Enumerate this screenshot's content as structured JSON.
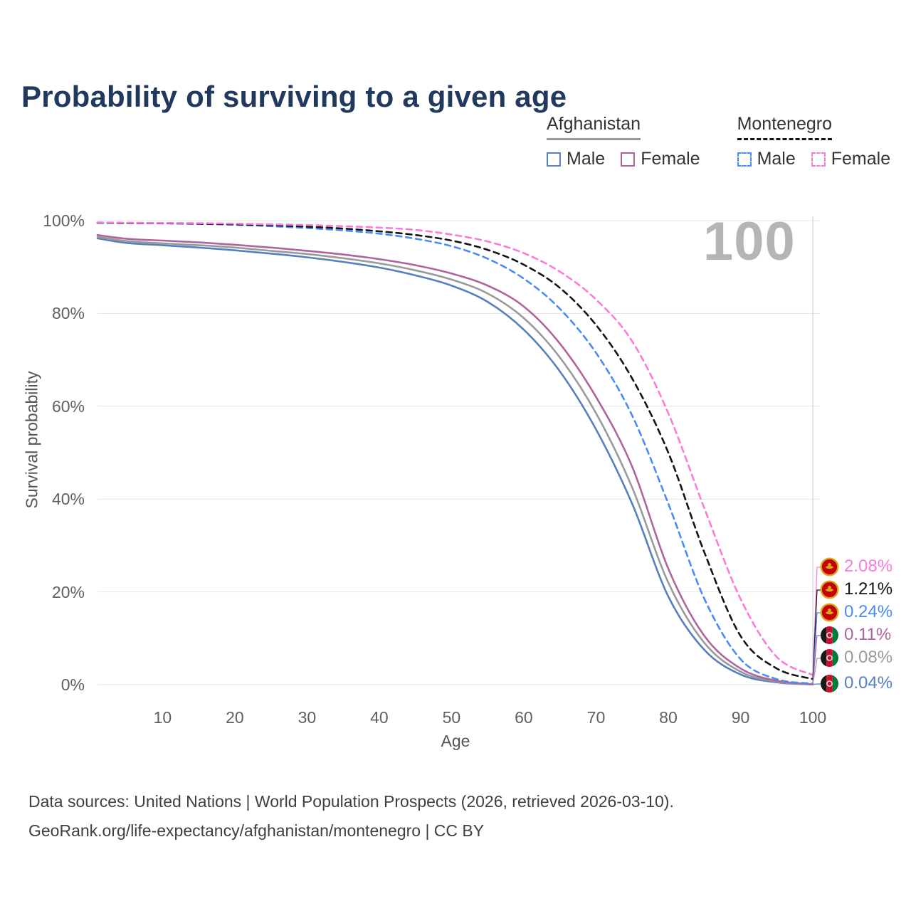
{
  "title": "Probability of surviving to a given age",
  "watermark_age": "100",
  "legend": {
    "groups": [
      {
        "label": "Afghanistan",
        "line_style": "solid",
        "line_color": "#999999",
        "items": [
          {
            "label": "Male",
            "color": "#567fbe",
            "dashed": false
          },
          {
            "label": "Female",
            "color": "#b0649e",
            "dashed": false
          }
        ]
      },
      {
        "label": "Montenegro",
        "line_style": "dashed",
        "line_color": "#141414",
        "items": [
          {
            "label": "Male",
            "color": "#4b8bf4",
            "dashed": true
          },
          {
            "label": "Female",
            "color": "#f97cd9",
            "dashed": true
          }
        ]
      }
    ]
  },
  "axes": {
    "x": {
      "title": "Age",
      "ticks": [
        {
          "label": "10",
          "value": 10
        },
        {
          "label": "20",
          "value": 20
        },
        {
          "label": "30",
          "value": 30
        },
        {
          "label": "40",
          "value": 40
        },
        {
          "label": "50",
          "value": 50
        },
        {
          "label": "60",
          "value": 60
        },
        {
          "label": "70",
          "value": 70
        },
        {
          "label": "80",
          "value": 80
        },
        {
          "label": "90",
          "value": 90
        },
        {
          "label": "100",
          "value": 100
        }
      ]
    },
    "y": {
      "title": "Survival probability",
      "ticks": [
        {
          "label": "0%",
          "value": 0
        },
        {
          "label": "20%",
          "value": 20
        },
        {
          "label": "40%",
          "value": 40
        },
        {
          "label": "60%",
          "value": 60
        },
        {
          "label": "80%",
          "value": 80
        },
        {
          "label": "100%",
          "value": 100
        }
      ]
    }
  },
  "end_labels": [
    {
      "value": "2.08%",
      "series": "Montenegro Female",
      "flag": "montenegro",
      "color": "#f97cd9"
    },
    {
      "value": "1.21%",
      "series": "Montenegro Both sexes",
      "flag": "montenegro",
      "color": "#141414"
    },
    {
      "value": "0.24%",
      "series": "Montenegro Male",
      "flag": "montenegro",
      "color": "#4b8bf4"
    },
    {
      "value": "0.11%",
      "series": "Afghanistan Female",
      "flag": "afghanistan",
      "color": "#b0649e"
    },
    {
      "value": "0.08%",
      "series": "Afghanistan Both sexes",
      "flag": "afghanistan",
      "color": "#9a9a9a"
    },
    {
      "value": "0.04%",
      "series": "Afghanistan Male",
      "flag": "afghanistan",
      "color": "#567fbe"
    }
  ],
  "footer": {
    "line1": "Data sources: United Nations | World Population Prospects (2026, retrieved 2026-03-10).",
    "line2": "GeoRank.org/life-expectancy/afghanistan/montenegro | CC BY"
  },
  "chart_data": {
    "type": "line",
    "title": "Probability of surviving to a given age",
    "xlabel": "Age",
    "ylabel": "Survival probability",
    "x_range": [
      1,
      100
    ],
    "ylim_pct": [
      0,
      100
    ],
    "grid": "horizontal",
    "hover_age": 100,
    "x": [
      1,
      5,
      10,
      15,
      20,
      25,
      30,
      35,
      40,
      45,
      50,
      55,
      60,
      65,
      70,
      75,
      80,
      85,
      90,
      95,
      100
    ],
    "series": [
      {
        "name": "Afghanistan Male",
        "country": "Afghanistan",
        "sex": "Male",
        "color": "#567fbe",
        "dashed": false,
        "end_value_pct": 0.04,
        "values": [
          96.2,
          95.2,
          94.7,
          94.2,
          93.6,
          92.9,
          92.1,
          91.1,
          89.9,
          88.2,
          86.0,
          82.5,
          76.5,
          67.5,
          55.0,
          39.0,
          19.0,
          7.5,
          2.2,
          0.5,
          0.04
        ]
      },
      {
        "name": "Afghanistan Both sexes",
        "country": "Afghanistan",
        "sex": "Both sexes",
        "color": "#9a9a9a",
        "dashed": false,
        "end_value_pct": 0.08,
        "values": [
          96.5,
          95.6,
          95.1,
          94.7,
          94.2,
          93.5,
          92.8,
          91.9,
          90.8,
          89.3,
          87.3,
          84.3,
          79.0,
          70.5,
          58.5,
          42.5,
          22.0,
          9.0,
          2.8,
          0.65,
          0.08
        ]
      },
      {
        "name": "Afghanistan Female",
        "country": "Afghanistan",
        "sex": "Female",
        "color": "#b0649e",
        "dashed": false,
        "end_value_pct": 0.11,
        "values": [
          96.9,
          96.1,
          95.7,
          95.3,
          94.8,
          94.2,
          93.5,
          92.7,
          91.7,
          90.4,
          88.6,
          86.0,
          81.5,
          73.5,
          62.0,
          47.0,
          25.0,
          10.5,
          3.5,
          0.85,
          0.11
        ]
      },
      {
        "name": "Montenegro Male",
        "country": "Montenegro",
        "sex": "Male",
        "color": "#4b8bf4",
        "dashed": true,
        "end_value_pct": 0.24,
        "values": [
          99.5,
          99.45,
          99.4,
          99.3,
          99.1,
          98.8,
          98.4,
          97.9,
          97.2,
          96.1,
          94.5,
          91.8,
          87.5,
          81.0,
          71.5,
          58.0,
          39.0,
          18.5,
          5.5,
          1.2,
          0.24
        ]
      },
      {
        "name": "Montenegro Both sexes",
        "country": "Montenegro",
        "sex": "Both sexes",
        "color": "#141414",
        "dashed": true,
        "end_value_pct": 1.21,
        "values": [
          99.55,
          99.5,
          99.45,
          99.35,
          99.2,
          99.0,
          98.7,
          98.3,
          97.7,
          96.9,
          95.7,
          93.7,
          90.5,
          85.5,
          77.5,
          66.0,
          50.0,
          28.5,
          10.5,
          3.5,
          1.21
        ]
      },
      {
        "name": "Montenegro Female",
        "country": "Montenegro",
        "sex": "Female",
        "color": "#f97cd9",
        "dashed": true,
        "end_value_pct": 2.08,
        "values": [
          99.6,
          99.55,
          99.5,
          99.45,
          99.35,
          99.2,
          99.05,
          98.8,
          98.5,
          98.0,
          97.0,
          95.5,
          93.0,
          89.0,
          83.0,
          74.0,
          58.5,
          38.0,
          18.5,
          6.0,
          2.08
        ]
      }
    ]
  }
}
